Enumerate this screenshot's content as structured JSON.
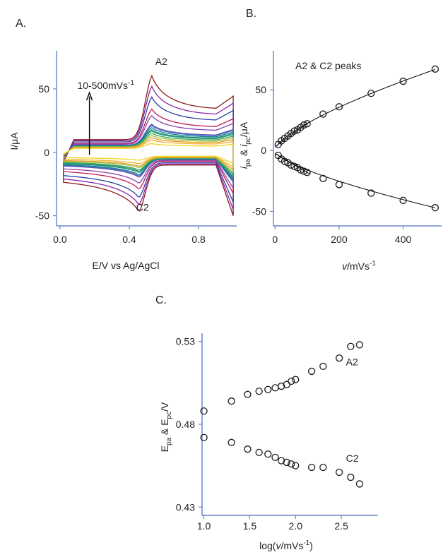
{
  "panels": {
    "a": "A.",
    "b": "B.",
    "c": "C."
  },
  "colors": {
    "axis": "#4a6fc0",
    "text": "#222222",
    "marker": "#1a1a1a"
  },
  "chart_data": [
    {
      "id": "A",
      "type": "line",
      "xlabel": "E/V vs Ag/AgCl",
      "ylabel": "I/μA",
      "xlim": [
        -0.02,
        1.02
      ],
      "ylim": [
        -58,
        80
      ],
      "xticks": [
        {
          "v": 0.0,
          "label": "0.0"
        },
        {
          "v": 0.4,
          "label": "0.4"
        },
        {
          "v": 0.8,
          "label": "0.8"
        }
      ],
      "yticks": [
        {
          "v": 50,
          "label": "50"
        },
        {
          "v": 0,
          "label": "0"
        },
        {
          "v": -50,
          "label": "-50"
        }
      ],
      "annotations": [
        {
          "text": "A2",
          "x": 0.55,
          "y": 69
        },
        {
          "text": "C2",
          "x": 0.44,
          "y": -46
        },
        {
          "text": "10-500mVs",
          "sup": "-1",
          "x": 0.1,
          "y": 50
        }
      ],
      "scan_rates_mVs": [
        10,
        20,
        30,
        40,
        50,
        60,
        70,
        80,
        90,
        100,
        150,
        200,
        300,
        400,
        500
      ],
      "peak_anodic_uA": [
        5,
        8,
        10,
        12,
        14,
        16,
        17,
        19,
        21,
        22,
        30,
        36,
        47,
        57,
        67
      ],
      "peak_cathodic_uA": [
        -4,
        -7,
        -9,
        -10,
        -12,
        -13,
        -14,
        -16,
        -17,
        -18,
        -23,
        -28,
        -35,
        -41,
        -47
      ],
      "series_colors": [
        "#f2d21b",
        "#f0b323",
        "#e89a2a",
        "#9bc53d",
        "#3fa34d",
        "#2a9d8f",
        "#1b8a6b",
        "#1a7f8c",
        "#3c6fc4",
        "#6a4fb3",
        "#8b3fa8",
        "#c2185b",
        "#2a3f9d",
        "#8e24aa",
        "#8b1a1a"
      ]
    },
    {
      "id": "B",
      "type": "scatter",
      "title": "A2 & C2 peaks",
      "xlabel": "v/mVs",
      "xlabel_sup": "-1",
      "ylabel": "i_pa & i_pc/μA",
      "xlim": [
        -5,
        520
      ],
      "ylim": [
        -62,
        82
      ],
      "xticks": [
        {
          "v": 0,
          "label": "0"
        },
        {
          "v": 200,
          "label": "200"
        },
        {
          "v": 400,
          "label": "400"
        }
      ],
      "yticks": [
        {
          "v": 50,
          "label": "50"
        },
        {
          "v": 0,
          "label": "0"
        },
        {
          "v": -50,
          "label": "-50"
        }
      ],
      "x": [
        10,
        20,
        30,
        40,
        50,
        60,
        70,
        80,
        90,
        100,
        150,
        200,
        300,
        400,
        500
      ],
      "series": [
        {
          "values": [
            5,
            8,
            10,
            12,
            14,
            16,
            17,
            19,
            21,
            22,
            30,
            36,
            47,
            57,
            67
          ]
        },
        {
          "values": [
            -4,
            -7,
            -9,
            -10,
            -12,
            -13,
            -14,
            -16,
            -17,
            -18,
            -23,
            -28,
            -35,
            -41,
            -47
          ]
        }
      ]
    },
    {
      "id": "C",
      "type": "scatter",
      "xlabel": "log(v/mVs",
      "xlabel_sup": "-1",
      "xlabel_end": ")",
      "ylabel": "E_pa & E_pc/V",
      "xlim": [
        0.98,
        2.9
      ],
      "ylim": [
        0.425,
        0.535
      ],
      "xticks": [
        {
          "v": 1.0,
          "label": "1.0"
        },
        {
          "v": 1.5,
          "label": "1.5"
        },
        {
          "v": 2.0,
          "label": "2.0"
        },
        {
          "v": 2.5,
          "label": "2.5"
        }
      ],
      "yticks": [
        {
          "v": 0.53,
          "label": "0.53"
        },
        {
          "v": 0.48,
          "label": "0.48"
        },
        {
          "v": 0.43,
          "label": "0.43"
        }
      ],
      "annotations": [
        {
          "text": "A2",
          "x": 2.55,
          "y": 0.5155
        },
        {
          "text": "C2",
          "x": 2.55,
          "y": 0.4575
        }
      ],
      "x": [
        1.0,
        1.301,
        1.477,
        1.602,
        1.699,
        1.778,
        1.845,
        1.903,
        1.954,
        2.0,
        2.176,
        2.301,
        2.477,
        2.602,
        2.699
      ],
      "series": [
        {
          "name": "A2",
          "values": [
            0.488,
            0.494,
            0.498,
            0.5,
            0.501,
            0.502,
            0.503,
            0.504,
            0.506,
            0.507,
            0.512,
            0.515,
            0.52,
            0.527,
            0.528
          ]
        },
        {
          "name": "C2",
          "values": [
            0.472,
            0.469,
            0.465,
            0.463,
            0.462,
            0.46,
            0.458,
            0.457,
            0.456,
            0.455,
            0.454,
            0.454,
            0.451,
            0.448,
            0.444
          ]
        }
      ]
    }
  ]
}
